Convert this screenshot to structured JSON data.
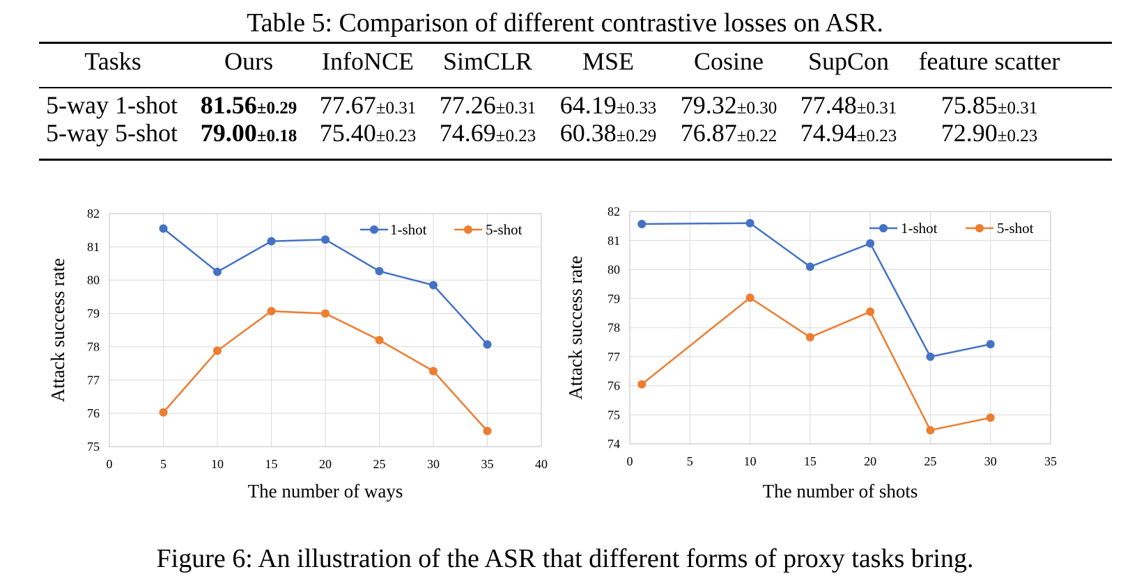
{
  "table": {
    "caption": "Table 5: Comparison of different contrastive losses on ASR.",
    "headers": [
      "Tasks",
      "Ours",
      "InfoNCE",
      "SimCLR",
      "MSE",
      "Cosine",
      "SupCon",
      "feature scatter"
    ],
    "rows": [
      {
        "task": "5-way 1-shot",
        "cells": [
          {
            "v": "81.56",
            "pm": "±0.29"
          },
          {
            "v": "77.67",
            "pm": "±0.31"
          },
          {
            "v": "77.26",
            "pm": "±0.31"
          },
          {
            "v": "64.19",
            "pm": "±0.33"
          },
          {
            "v": "79.32",
            "pm": "±0.30"
          },
          {
            "v": "77.48",
            "pm": "±0.31"
          },
          {
            "v": "75.85",
            "pm": "±0.31"
          }
        ]
      },
      {
        "task": "5-way 5-shot",
        "cells": [
          {
            "v": "79.00",
            "pm": "±0.18"
          },
          {
            "v": "75.40",
            "pm": "±0.23"
          },
          {
            "v": "74.69",
            "pm": "±0.23"
          },
          {
            "v": "60.38",
            "pm": "±0.29"
          },
          {
            "v": "76.87",
            "pm": "±0.22"
          },
          {
            "v": "74.94",
            "pm": "±0.23"
          },
          {
            "v": "72.90",
            "pm": "±0.23"
          }
        ]
      }
    ]
  },
  "figure_caption": "Figure 6: An illustration of the ASR that different forms of proxy tasks bring.",
  "chart_data": [
    {
      "type": "line",
      "xlabel": "The number of ways",
      "ylabel": "Attack success rate",
      "xlim": [
        0,
        40
      ],
      "ylim": [
        75,
        82
      ],
      "xticks": [
        0,
        5,
        10,
        15,
        20,
        25,
        30,
        35,
        40
      ],
      "yticks": [
        75,
        76,
        77,
        78,
        79,
        80,
        81,
        82
      ],
      "grid": true,
      "legend": "top-right",
      "x": [
        5,
        10,
        15,
        20,
        25,
        30,
        35
      ],
      "series": [
        {
          "name": "1-shot",
          "color": "#4472C4",
          "values": [
            81.55,
            80.25,
            81.17,
            81.22,
            80.27,
            79.85,
            78.07
          ]
        },
        {
          "name": "5-shot",
          "color": "#ED7D31",
          "values": [
            76.03,
            77.88,
            79.07,
            79.0,
            78.2,
            77.27,
            75.47
          ]
        }
      ]
    },
    {
      "type": "line",
      "xlabel": "The number of shots",
      "ylabel": "Attack success rate",
      "xlim": [
        0,
        35
      ],
      "ylim": [
        74,
        82
      ],
      "xticks": [
        0,
        5,
        10,
        15,
        20,
        25,
        30,
        35
      ],
      "yticks": [
        74,
        75,
        76,
        77,
        78,
        79,
        80,
        81,
        82
      ],
      "grid": true,
      "legend": "top-right",
      "x": [
        1,
        10,
        15,
        20,
        25,
        30
      ],
      "series": [
        {
          "name": "1-shot",
          "color": "#4472C4",
          "values": [
            81.57,
            81.6,
            80.1,
            80.9,
            77.0,
            77.43
          ]
        },
        {
          "name": "5-shot",
          "color": "#ED7D31",
          "values": [
            76.05,
            79.03,
            77.67,
            78.55,
            74.47,
            74.9
          ]
        }
      ]
    }
  ]
}
